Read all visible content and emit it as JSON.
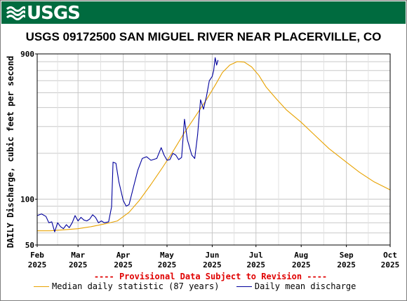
{
  "logo": {
    "text": "USGS",
    "icon": "usgs-wave-logo"
  },
  "chart_data": {
    "type": "line",
    "title": "USGS 09172500 SAN MIGUEL RIVER NEAR PLACERVILLE, CO",
    "ylabel": "DAILY Discharge, cubic feet per second",
    "yscale": "log",
    "ylim": [
      50,
      900
    ],
    "yticks": [
      {
        "value": 50,
        "label": "50"
      },
      {
        "value": 100,
        "label": "100"
      },
      {
        "value": 900,
        "label": "900"
      }
    ],
    "xlim": [
      "2025-02-01",
      "2025-10-01"
    ],
    "xticks": [
      {
        "date": "2025-02-01",
        "month": "Feb",
        "year": "2025"
      },
      {
        "date": "2025-03-01",
        "month": "Mar",
        "year": "2025"
      },
      {
        "date": "2025-04-01",
        "month": "Apr",
        "year": "2025"
      },
      {
        "date": "2025-05-01",
        "month": "May",
        "year": "2025"
      },
      {
        "date": "2025-06-01",
        "month": "Jun",
        "year": "2025"
      },
      {
        "date": "2025-07-01",
        "month": "Jul",
        "year": "2025"
      },
      {
        "date": "2025-08-01",
        "month": "Aug",
        "year": "2025"
      },
      {
        "date": "2025-09-01",
        "month": "Sep",
        "year": "2025"
      },
      {
        "date": "2025-10-01",
        "month": "Oct",
        "year": "2025"
      }
    ],
    "grid": true,
    "provisional_note": "---- Provisional Data Subject to Revision ----",
    "series": [
      {
        "name": "Median daily statistic (87 years)",
        "color": "#e8a200",
        "points": [
          [
            "2025-02-01",
            62
          ],
          [
            "2025-02-10",
            62
          ],
          [
            "2025-02-20",
            63
          ],
          [
            "2025-03-01",
            64
          ],
          [
            "2025-03-10",
            66
          ],
          [
            "2025-03-20",
            69
          ],
          [
            "2025-03-28",
            72
          ],
          [
            "2025-04-05",
            82
          ],
          [
            "2025-04-12",
            98
          ],
          [
            "2025-04-20",
            125
          ],
          [
            "2025-04-28",
            162
          ],
          [
            "2025-05-05",
            205
          ],
          [
            "2025-05-12",
            265
          ],
          [
            "2025-05-20",
            345
          ],
          [
            "2025-05-28",
            450
          ],
          [
            "2025-06-03",
            560
          ],
          [
            "2025-06-08",
            680
          ],
          [
            "2025-06-13",
            760
          ],
          [
            "2025-06-18",
            800
          ],
          [
            "2025-06-23",
            795
          ],
          [
            "2025-06-28",
            740
          ],
          [
            "2025-07-03",
            650
          ],
          [
            "2025-07-08",
            545
          ],
          [
            "2025-07-15",
            455
          ],
          [
            "2025-07-22",
            385
          ],
          [
            "2025-08-01",
            320
          ],
          [
            "2025-08-10",
            265
          ],
          [
            "2025-08-20",
            215
          ],
          [
            "2025-09-01",
            175
          ],
          [
            "2025-09-10",
            150
          ],
          [
            "2025-09-20",
            130
          ],
          [
            "2025-10-01",
            115
          ]
        ]
      },
      {
        "name": "Daily mean discharge",
        "color": "#00009c",
        "points": [
          [
            "2025-02-01",
            78
          ],
          [
            "2025-02-04",
            80
          ],
          [
            "2025-02-07",
            77
          ],
          [
            "2025-02-09",
            70
          ],
          [
            "2025-02-11",
            71
          ],
          [
            "2025-02-13",
            61
          ],
          [
            "2025-02-15",
            70
          ],
          [
            "2025-02-17",
            66
          ],
          [
            "2025-02-19",
            64
          ],
          [
            "2025-02-21",
            68
          ],
          [
            "2025-02-23",
            65
          ],
          [
            "2025-02-25",
            70
          ],
          [
            "2025-02-27",
            78
          ],
          [
            "2025-03-01",
            72
          ],
          [
            "2025-03-03",
            76
          ],
          [
            "2025-03-05",
            73
          ],
          [
            "2025-03-07",
            72
          ],
          [
            "2025-03-09",
            74
          ],
          [
            "2025-03-11",
            79
          ],
          [
            "2025-03-13",
            76
          ],
          [
            "2025-03-15",
            70
          ],
          [
            "2025-03-17",
            72
          ],
          [
            "2025-03-19",
            70
          ],
          [
            "2025-03-22",
            71
          ],
          [
            "2025-03-24",
            89
          ],
          [
            "2025-03-25",
            175
          ],
          [
            "2025-03-27",
            172
          ],
          [
            "2025-03-29",
            130
          ],
          [
            "2025-04-01",
            98
          ],
          [
            "2025-04-03",
            90
          ],
          [
            "2025-04-05",
            92
          ],
          [
            "2025-04-08",
            120
          ],
          [
            "2025-04-11",
            155
          ],
          [
            "2025-04-14",
            185
          ],
          [
            "2025-04-17",
            190
          ],
          [
            "2025-04-20",
            180
          ],
          [
            "2025-04-24",
            185
          ],
          [
            "2025-04-27",
            218
          ],
          [
            "2025-04-29",
            195
          ],
          [
            "2025-05-01",
            180
          ],
          [
            "2025-05-03",
            182
          ],
          [
            "2025-05-05",
            200
          ],
          [
            "2025-05-07",
            195
          ],
          [
            "2025-05-09",
            182
          ],
          [
            "2025-05-11",
            188
          ],
          [
            "2025-05-13",
            335
          ],
          [
            "2025-05-15",
            245
          ],
          [
            "2025-05-18",
            195
          ],
          [
            "2025-05-20",
            185
          ],
          [
            "2025-05-22",
            265
          ],
          [
            "2025-05-24",
            450
          ],
          [
            "2025-05-26",
            390
          ],
          [
            "2025-05-28",
            470
          ],
          [
            "2025-05-30",
            600
          ],
          [
            "2025-06-01",
            640
          ],
          [
            "2025-06-02",
            700
          ],
          [
            "2025-06-03",
            850
          ],
          [
            "2025-06-04",
            760
          ],
          [
            "2025-06-05",
            820
          ]
        ]
      }
    ]
  }
}
